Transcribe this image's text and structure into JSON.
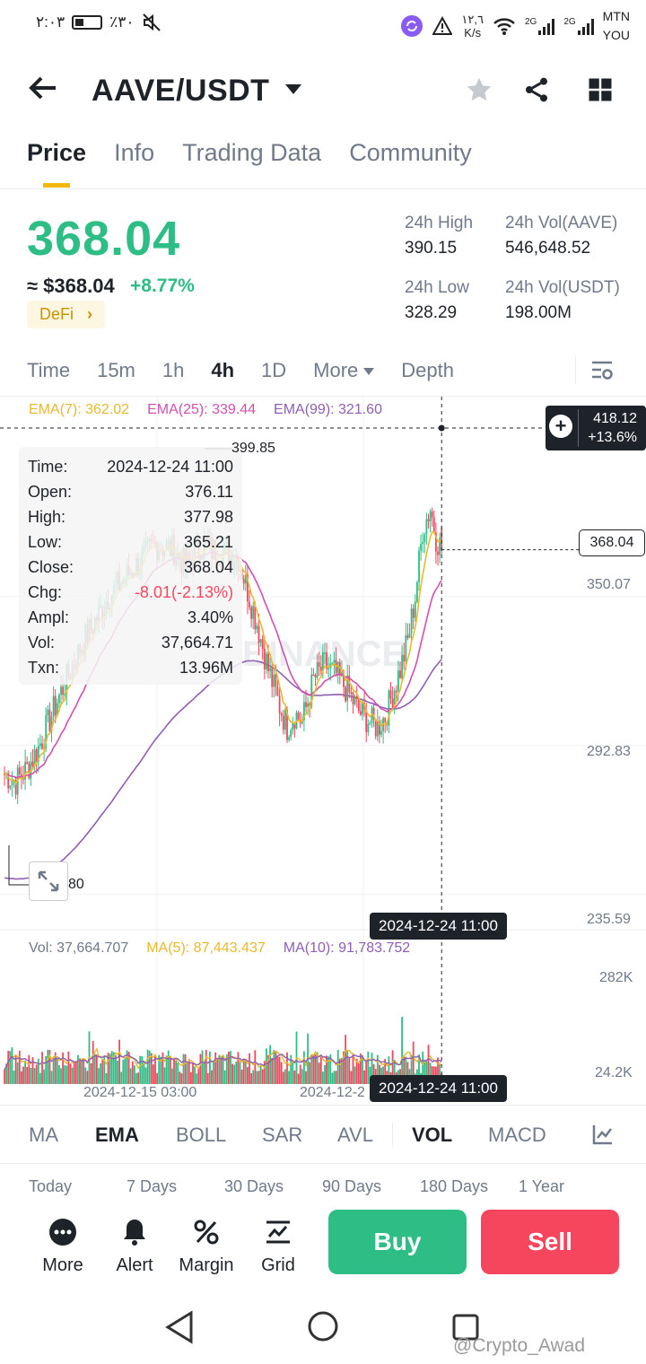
{
  "status_bar": {
    "time": "٢:٠٣",
    "battery": "٪٣٠",
    "net_speed": "١٢,٦",
    "net_unit": "K/s",
    "sim1": "2G",
    "sim2": "2G",
    "carrier_line1": "MTN",
    "carrier_line2": "YOU"
  },
  "header": {
    "pair": "AAVE/USDT",
    "icons": [
      "back-arrow-icon",
      "caret-down-icon",
      "star-icon",
      "share-icon",
      "grid-icon"
    ]
  },
  "tabs": [
    "Price",
    "Info",
    "Trading Data",
    "Community"
  ],
  "active_tab": "Price",
  "price": {
    "last": "368.04",
    "approx": "≈ $368.04",
    "change": "+8.77%",
    "tag": "DeFi",
    "tag_arrow": "›"
  },
  "stats": {
    "high_label": "24h High",
    "high": "390.15",
    "vol_base_label": "24h Vol(AAVE)",
    "vol_base": "546,648.52",
    "low_label": "24h Low",
    "low": "328.29",
    "vol_quote_label": "24h Vol(USDT)",
    "vol_quote": "198.00M"
  },
  "intervals": [
    "Time",
    "15m",
    "1h",
    "4h",
    "1D",
    "More",
    "Depth"
  ],
  "active_interval": "4h",
  "ema": {
    "ema7": "EMA(7): 362.02",
    "ema25": "EMA(25): 339.44",
    "ema99": "EMA(99): 321.60"
  },
  "ohlc": {
    "time_label": "Time:",
    "time": "2024-12-24 11:00",
    "open_label": "Open:",
    "open": "376.11",
    "high_label": "High:",
    "high": "377.98",
    "low_label": "Low:",
    "low": "365.21",
    "close_label": "Close:",
    "close": "368.04",
    "chg_label": "Chg:",
    "chg": "-8.01(-2.13%)",
    "ampl_label": "Ampl:",
    "ampl": "3.40%",
    "vol_label": "Vol:",
    "vol": "37,664.71",
    "txn_label": "Txn:",
    "txn": "13.96M"
  },
  "chart_labels": {
    "max_marker": "399.85",
    "min_marker": "80",
    "axis_350": "350.07",
    "axis_292": "292.83",
    "axis_235": "235.59",
    "current": "368.04",
    "crosshair_price": "418.12",
    "crosshair_pct": "+13.6%",
    "crosshair_time": "2024-12-24 11:00",
    "watermark": "BINANCE"
  },
  "volume": {
    "vol": "Vol: 37,664.707",
    "ma5": "MA(5): 87,443.437",
    "ma10": "MA(10): 91,783.752",
    "axis_top": "282K",
    "axis_bottom": "24.2K",
    "x_label_1": "2024-12-15 03:00",
    "x_label_2": "2024-12-2",
    "crosshair_time": "2024-12-24 11:00"
  },
  "indicators": [
    "MA",
    "EMA",
    "BOLL",
    "SAR",
    "AVL",
    "VOL",
    "MACD"
  ],
  "active_indicators": [
    "EMA",
    "VOL"
  ],
  "ranges": [
    "Today",
    "7 Days",
    "30 Days",
    "90 Days",
    "180 Days",
    "1 Year"
  ],
  "bottom_bar": {
    "more": "More",
    "alert": "Alert",
    "margin": "Margin",
    "grid": "Grid",
    "buy": "Buy",
    "sell": "Sell"
  },
  "footer_watermark": "@Crypto_Awad",
  "colors": {
    "up": "#2ebd85",
    "down": "#f6465d",
    "accent": "#f0b90b",
    "ema7": "#e8b92c",
    "ema25": "#d34fae",
    "ema99": "#8e5fb5"
  },
  "chart_data": {
    "type": "candlestick",
    "ylim": [
      220,
      420
    ],
    "visible_start": "2024-12-12 11:00",
    "visible_end": "2024-12-24 11:00",
    "bar_interval_hours": 4,
    "price_ticks": [
      350.07,
      292.83,
      235.59
    ],
    "last_candle": {
      "open": 376.11,
      "high": 377.98,
      "low": 365.21,
      "close": 368.04
    }
  }
}
